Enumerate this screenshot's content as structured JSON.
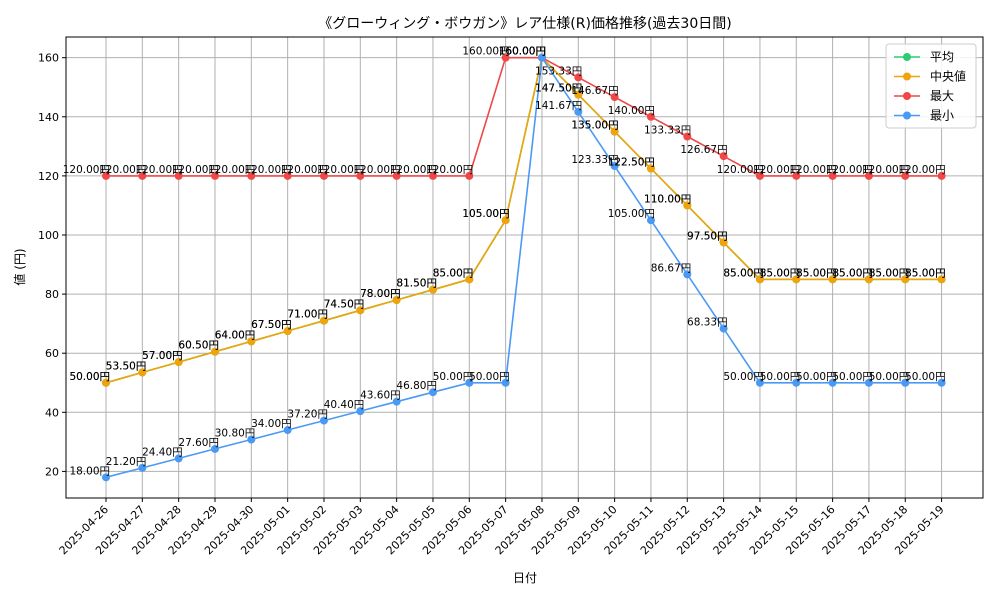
{
  "chart_data": {
    "type": "line",
    "title": "《グローウィング・ボウガン》レア仕様(R)価格推移(過去30日間)",
    "xlabel": "日付",
    "ylabel": "値 (円)",
    "ylim": [
      11,
      167
    ],
    "yticks": [
      20,
      40,
      60,
      80,
      100,
      120,
      140,
      160
    ],
    "grid": true,
    "legend_position": "top-right",
    "x": [
      "2025-04-26",
      "2025-04-27",
      "2025-04-28",
      "2025-04-29",
      "2025-04-30",
      "2025-05-01",
      "2025-05-02",
      "2025-05-03",
      "2025-05-04",
      "2025-05-05",
      "2025-05-06",
      "2025-05-07",
      "2025-05-08",
      "2025-05-09",
      "2025-05-10",
      "2025-05-11",
      "2025-05-12",
      "2025-05-13",
      "2025-05-14",
      "2025-05-15",
      "2025-05-16",
      "2025-05-17",
      "2025-05-18",
      "2025-05-19"
    ],
    "series": [
      {
        "name": "平均",
        "color": "#2ecc71",
        "values": [
          50,
          53.5,
          57,
          60.5,
          64,
          67.5,
          71,
          74.5,
          78,
          81.5,
          85,
          105,
          160,
          147.5,
          135,
          122.5,
          110,
          97.5,
          85,
          85,
          85,
          85,
          85,
          85
        ]
      },
      {
        "name": "中央値",
        "color": "#f0a30a",
        "values": [
          50,
          53.5,
          57,
          60.5,
          64,
          67.5,
          71,
          74.5,
          78,
          81.5,
          85,
          105,
          160,
          147.5,
          135,
          122.5,
          110,
          97.5,
          85,
          85,
          85,
          85,
          85,
          85
        ]
      },
      {
        "name": "最大",
        "color": "#f04747",
        "values": [
          120,
          120,
          120,
          120,
          120,
          120,
          120,
          120,
          120,
          120,
          120,
          160,
          160,
          153.33,
          146.67,
          140,
          133.33,
          126.67,
          120,
          120,
          120,
          120,
          120,
          120
        ]
      },
      {
        "name": "最小",
        "color": "#4a9af5",
        "values": [
          18,
          21.2,
          24.4,
          27.6,
          30.8,
          34,
          37.2,
          40.4,
          43.6,
          46.8,
          50,
          50,
          160,
          141.67,
          123.33,
          105,
          86.67,
          68.33,
          50,
          50,
          50,
          50,
          50,
          50
        ]
      }
    ],
    "value_suffix": "円"
  }
}
